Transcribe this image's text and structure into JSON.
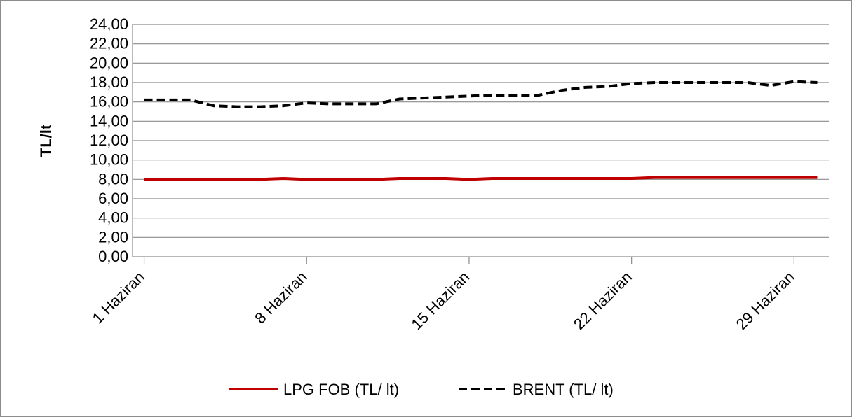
{
  "chart_data": {
    "type": "line",
    "title": "",
    "xlabel": "",
    "ylabel": "TL/lt",
    "ylim": [
      0,
      24
    ],
    "ytick_step": 2,
    "ytick_labels": [
      "0,00",
      "2,00",
      "4,00",
      "6,00",
      "8,00",
      "10,00",
      "12,00",
      "14,00",
      "16,00",
      "18,00",
      "20,00",
      "22,00",
      "24,00"
    ],
    "x": [
      1,
      2,
      3,
      4,
      5,
      6,
      7,
      8,
      9,
      10,
      11,
      12,
      13,
      14,
      15,
      16,
      17,
      18,
      19,
      20,
      21,
      22,
      23,
      24,
      25,
      26,
      27,
      28,
      29,
      30
    ],
    "xticks": [
      {
        "x": 1,
        "label": "1 Haziran"
      },
      {
        "x": 8,
        "label": "8 Haziran"
      },
      {
        "x": 15,
        "label": "15 Haziran"
      },
      {
        "x": 22,
        "label": "22 Haziran"
      },
      {
        "x": 29,
        "label": "29 Haziran"
      }
    ],
    "grid": true,
    "legend_position": "bottom",
    "series": [
      {
        "name": "LPG FOB (TL/ lt)",
        "color": "#c00000",
        "style": "solid",
        "values": [
          8.0,
          8.0,
          8.0,
          8.0,
          8.0,
          8.0,
          8.1,
          8.0,
          8.0,
          8.0,
          8.0,
          8.1,
          8.1,
          8.1,
          8.0,
          8.1,
          8.1,
          8.1,
          8.1,
          8.1,
          8.1,
          8.1,
          8.2,
          8.2,
          8.2,
          8.2,
          8.2,
          8.2,
          8.2,
          8.2
        ]
      },
      {
        "name": "BRENT (TL/ lt)",
        "color": "#000000",
        "style": "dashed",
        "values": [
          16.2,
          16.2,
          16.2,
          15.6,
          15.5,
          15.5,
          15.6,
          15.9,
          15.8,
          15.8,
          15.8,
          16.3,
          16.4,
          16.5,
          16.6,
          16.7,
          16.7,
          16.7,
          17.2,
          17.5,
          17.6,
          17.9,
          18.0,
          18.0,
          18.0,
          18.0,
          18.0,
          17.7,
          18.1,
          18.0
        ]
      }
    ]
  }
}
